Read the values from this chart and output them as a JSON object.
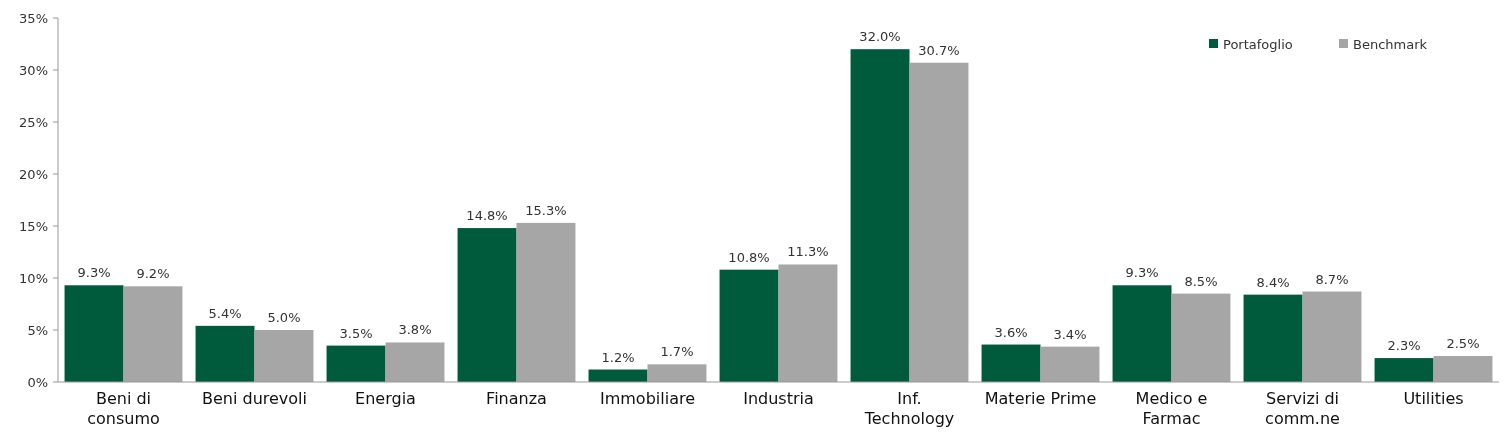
{
  "chart_data": {
    "type": "bar",
    "categories": [
      "Beni di\nconsumo",
      "Beni durevoli",
      "Energia",
      "Finanza",
      "Immobiliare",
      "Industria",
      "Inf.\nTechnology",
      "Materie Prime",
      "Medico e\nFarmac",
      "Servizi di\ncomm.ne",
      "Utilities"
    ],
    "series": [
      {
        "name": "Portafoglio",
        "color": "#005a3c",
        "values": [
          9.3,
          5.4,
          3.5,
          14.8,
          1.2,
          10.8,
          32.0,
          3.6,
          9.3,
          8.4,
          2.3
        ],
        "value_labels": [
          "9.3%",
          "5.4%",
          "3.5%",
          "14.8%",
          "1.2%",
          "10.8%",
          "32.0%",
          "3.6%",
          "9.3%",
          "8.4%",
          "2.3%"
        ]
      },
      {
        "name": "Benchmark",
        "color": "#a6a6a6",
        "values": [
          9.2,
          5.0,
          3.8,
          15.3,
          1.7,
          11.3,
          30.7,
          3.4,
          8.5,
          8.7,
          2.5
        ],
        "value_labels": [
          "9.2%",
          "5.0%",
          "3.8%",
          "15.3%",
          "1.7%",
          "11.3%",
          "30.7%",
          "3.4%",
          "8.5%",
          "8.7%",
          "2.5%"
        ]
      }
    ],
    "ylim": [
      0,
      35
    ],
    "yticks": [
      {
        "value": 0,
        "label": "0%"
      },
      {
        "value": 5,
        "label": "5%"
      },
      {
        "value": 10,
        "label": "10%"
      },
      {
        "value": 15,
        "label": "15%"
      },
      {
        "value": 20,
        "label": "20%"
      },
      {
        "value": 25,
        "label": "25%"
      },
      {
        "value": 30,
        "label": "30%"
      },
      {
        "value": 35,
        "label": "35%"
      }
    ],
    "grid": false,
    "legend": "top right"
  }
}
